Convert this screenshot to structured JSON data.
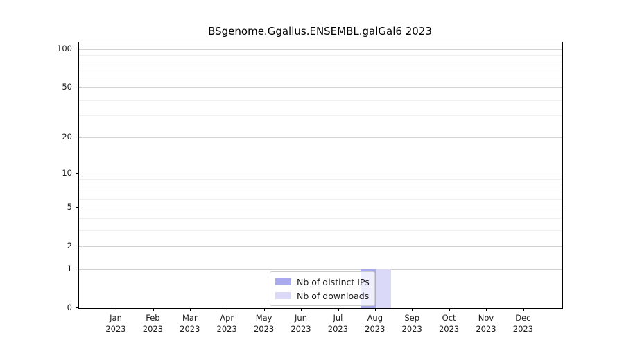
{
  "title": "BSgenome.Ggallus.ENSEMBL.galGal6 2023",
  "chart_data": {
    "type": "bar",
    "title": "BSgenome.Ggallus.ENSEMBL.galGal6 2023",
    "categories": [
      "Jan",
      "Feb",
      "Mar",
      "Apr",
      "May",
      "Jun",
      "Jul",
      "Aug",
      "Sep",
      "Oct",
      "Nov",
      "Dec"
    ],
    "x_tick_year": "2023",
    "series": [
      {
        "name": "Nb of distinct IPs",
        "color": "#aaaaee",
        "values": [
          0,
          0,
          0,
          0,
          0,
          0,
          0,
          1,
          0,
          0,
          0,
          0
        ]
      },
      {
        "name": "Nb of downloads",
        "color": "#dadaf8",
        "values": [
          0,
          0,
          0,
          0,
          0,
          0,
          0,
          1,
          0,
          0,
          0,
          0
        ]
      }
    ],
    "yscale": "log1p",
    "ylim": [
      0,
      113
    ],
    "y_major_ticks": [
      0,
      1,
      2,
      5,
      10,
      20,
      50,
      100
    ],
    "y_minor_ticks": [
      3,
      4,
      6,
      7,
      8,
      9,
      30,
      40,
      60,
      70,
      80,
      90
    ],
    "grid": true,
    "legend_position": "lower center",
    "colors": {
      "major_grid": "#d2d2d2",
      "minor_grid": "#f0f0f0",
      "axis": "#000000",
      "legend_border": "#cccccc",
      "text": "#1a1a1a"
    }
  }
}
